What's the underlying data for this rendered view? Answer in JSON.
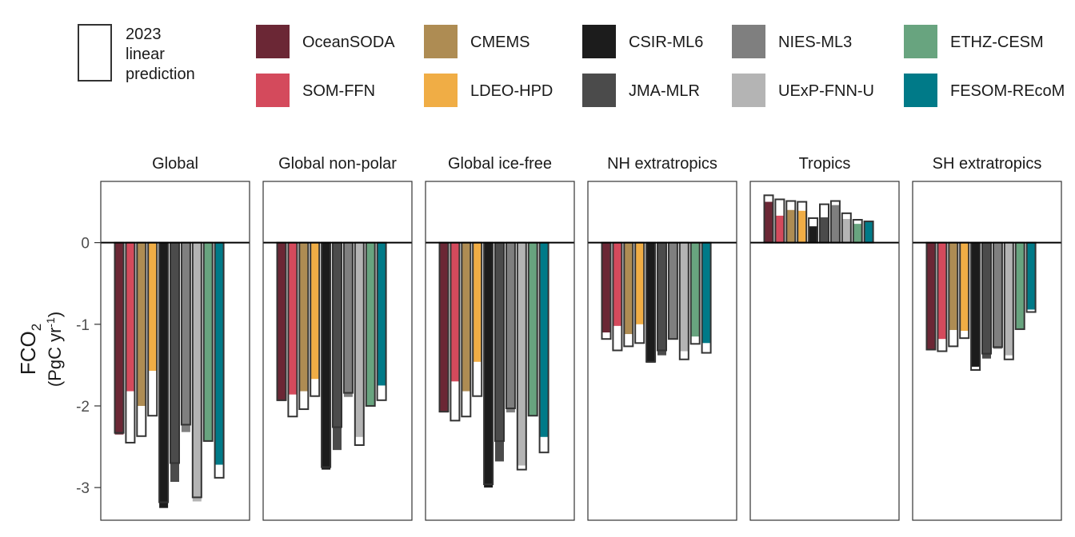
{
  "legend": {
    "prediction_label": [
      "2023",
      "linear",
      "prediction"
    ],
    "products": [
      {
        "name": "OceanSODA",
        "color": "#6b2735"
      },
      {
        "name": "SOM-FFN",
        "color": "#d44a5c"
      },
      {
        "name": "CMEMS",
        "color": "#ae8c53"
      },
      {
        "name": "LDEO-HPD",
        "color": "#f0ad45"
      },
      {
        "name": "CSIR-ML6",
        "color": "#1c1c1c"
      },
      {
        "name": "JMA-MLR",
        "color": "#4b4b4b"
      },
      {
        "name": "NIES-ML3",
        "color": "#7f7f7f"
      },
      {
        "name": "UExP-FNN-U",
        "color": "#b4b4b4"
      },
      {
        "name": "ETHZ-CESM",
        "color": "#68a47f"
      },
      {
        "name": "FESOM-REcoM",
        "color": "#007a88"
      }
    ]
  },
  "chart_data": {
    "type": "bar",
    "ylabel_main": "FCO",
    "ylabel_sub": "2",
    "ylabel_unit_pre": "(PgC yr",
    "ylabel_unit_sup": "-1",
    "ylabel_unit_post": ")",
    "ylim": [
      -3.4,
      0.75
    ],
    "yticks": [
      0,
      -1,
      -2,
      -3
    ],
    "ytick_labels": [
      "0",
      "-1",
      "-2",
      "-3"
    ],
    "grid": false,
    "panels": [
      {
        "title": "Global",
        "values": [
          -2.35,
          -1.82,
          -2.0,
          -1.57,
          -3.25,
          -2.93,
          -2.32,
          -3.17,
          -2.43,
          -2.72
        ],
        "prediction": [
          -2.33,
          -2.45,
          -2.37,
          -2.12,
          -3.18,
          -2.7,
          -2.23,
          -3.12,
          -2.43,
          -2.88
        ]
      },
      {
        "title": "Global non-polar",
        "values": [
          -1.94,
          -1.86,
          -1.82,
          -1.67,
          -2.78,
          -2.54,
          -1.89,
          -2.38,
          -2.0,
          -1.75
        ],
        "prediction": [
          -1.93,
          -2.13,
          -2.04,
          -1.88,
          -2.75,
          -2.26,
          -1.84,
          -2.48,
          -2.0,
          -1.93
        ]
      },
      {
        "title": "Global ice-free",
        "values": [
          -2.08,
          -1.7,
          -1.82,
          -1.46,
          -3.0,
          -2.68,
          -2.08,
          -2.73,
          -2.12,
          -2.38
        ],
        "prediction": [
          -2.07,
          -2.18,
          -2.13,
          -1.88,
          -2.96,
          -2.43,
          -2.03,
          -2.78,
          -2.12,
          -2.57
        ]
      },
      {
        "title": "NH extratropics",
        "values": [
          -1.1,
          -1.02,
          -1.12,
          -1.0,
          -1.47,
          -1.38,
          -1.18,
          -1.33,
          -1.15,
          -1.23
        ],
        "prediction": [
          -1.18,
          -1.32,
          -1.27,
          -1.23,
          -1.46,
          -1.32,
          -1.18,
          -1.43,
          -1.24,
          -1.35
        ]
      },
      {
        "title": "Tropics",
        "values": [
          0.5,
          0.33,
          0.4,
          0.39,
          0.2,
          0.31,
          0.46,
          0.29,
          0.23,
          0.26
        ],
        "prediction": [
          0.58,
          0.53,
          0.51,
          0.5,
          0.3,
          0.47,
          0.51,
          0.36,
          0.28,
          0.26
        ]
      },
      {
        "title": "SH extratropics",
        "values": [
          -1.32,
          -1.18,
          -1.07,
          -1.08,
          -1.52,
          -1.42,
          -1.3,
          -1.38,
          -1.06,
          -0.82
        ],
        "prediction": [
          -1.31,
          -1.33,
          -1.27,
          -1.17,
          -1.56,
          -1.36,
          -1.28,
          -1.43,
          -1.06,
          -0.85
        ]
      }
    ]
  }
}
